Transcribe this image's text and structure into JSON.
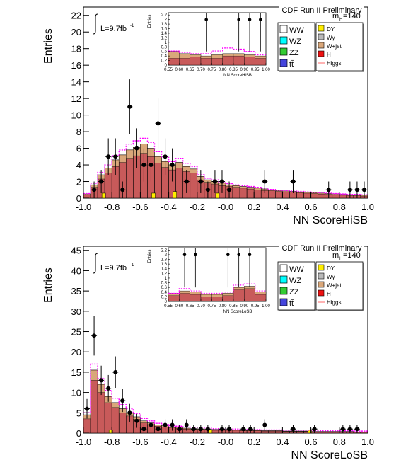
{
  "colors": {
    "bg_red": "#c85a5a",
    "wjet": "#d9a77a",
    "wgamma": "#b9b9b9",
    "dy": "#ffee00",
    "signal": "#ff00ff",
    "data": "#000000",
    "ww": "#ffffff",
    "wz": "#00ffff",
    "zz": "#33cc33",
    "tt": "#4444dd",
    "h": "#ee1111"
  },
  "legend": {
    "left": [
      {
        "label": "WW",
        "color": "#ffffff"
      },
      {
        "label": "WZ",
        "color": "#00ffff"
      },
      {
        "label": "ZZ",
        "color": "#33cc33"
      },
      {
        "label": "tt̄",
        "color": "#4444dd"
      }
    ],
    "right": [
      {
        "label": "DY",
        "color": "#ffee00"
      },
      {
        "label": "Wγ",
        "color": "#b9b9b9"
      },
      {
        "label": "W+jet",
        "color": "#d9a77a"
      },
      {
        "label": "H",
        "color": "#ee1111"
      },
      {
        "label": "Higgs",
        "color": "#ff6666"
      }
    ]
  },
  "chart_data": [
    {
      "type": "bar",
      "title": "CDF Run II Preliminary",
      "ylabel": "Entries",
      "xlabel": "NN ScoreHiSB",
      "lumi": "L=9.7fb",
      "lumi_sup": "-1",
      "mass_label": "m",
      "mass_sub": "H",
      "mass_value": "=140",
      "xlim": [
        -1.0,
        1.0
      ],
      "ylim": [
        0,
        23
      ],
      "x_ticks": [
        "-1.0",
        "-0.8",
        "-0.6",
        "-0.4",
        "-0.2",
        "-0.0",
        "0.2",
        "0.4",
        "0.6",
        "0.8",
        "1.0"
      ],
      "y_ticks": [
        "0",
        "2",
        "4",
        "6",
        "8",
        "10",
        "12",
        "14",
        "16",
        "18",
        "20",
        "22"
      ],
      "bin_width": 0.05,
      "background": [
        0.5,
        1.6,
        2.8,
        3.6,
        4.6,
        5.2,
        5.8,
        6.1,
        6.5,
        6.0,
        5.0,
        4.4,
        4.0,
        4.3,
        3.8,
        3.5,
        2.6,
        2.2,
        2.0,
        1.8,
        1.6,
        1.5,
        1.4,
        1.3,
        1.2,
        1.1,
        1.0,
        0.9,
        0.85,
        0.8,
        0.75,
        0.7,
        0.65,
        0.6,
        0.55,
        0.5,
        0.45,
        0.4,
        0.4,
        0.35
      ],
      "wjet": [
        0.1,
        0.3,
        0.5,
        0.6,
        0.8,
        0.9,
        1.0,
        1.0,
        1.1,
        1.0,
        0.8,
        0.7,
        0.6,
        0.7,
        0.6,
        0.5,
        0.4,
        0.3,
        0.3,
        0.3,
        0.2,
        0.2,
        0.2,
        0.2,
        0.2,
        0.2,
        0.1,
        0.1,
        0.1,
        0.1,
        0.1,
        0.1,
        0.1,
        0.1,
        0.1,
        0.1,
        0.1,
        0.1,
        0.1,
        0.1
      ],
      "signal": [
        0.55,
        1.8,
        3.1,
        4.0,
        5.1,
        5.8,
        6.5,
        6.9,
        7.2,
        6.7,
        5.6,
        4.9,
        4.4,
        4.8,
        4.2,
        3.8,
        2.8,
        2.4,
        2.2,
        1.95,
        1.75,
        1.6,
        1.5,
        1.4,
        1.3,
        1.2,
        1.05,
        0.95,
        0.9,
        0.85,
        0.8,
        0.75,
        0.7,
        0.65,
        0.6,
        0.55,
        0.5,
        0.45,
        0.45,
        0.4
      ],
      "dy": [
        {
          "x": -0.87,
          "y": 0.6
        },
        {
          "x": -0.52,
          "y": 0.6
        },
        {
          "x": -0.37,
          "y": 0.8
        },
        {
          "x": -0.07,
          "y": 0.6
        }
      ],
      "data": [
        {
          "x": -0.925,
          "y": 1,
          "err": 1.0
        },
        {
          "x": -0.875,
          "y": 2,
          "err": 1.4
        },
        {
          "x": -0.825,
          "y": 5,
          "err": 2.2
        },
        {
          "x": -0.775,
          "y": 5,
          "err": 2.2
        },
        {
          "x": -0.725,
          "y": 1,
          "err": 1.0
        },
        {
          "x": -0.675,
          "y": 11,
          "err": 3.3
        },
        {
          "x": -0.625,
          "y": 6,
          "err": 2.4
        },
        {
          "x": -0.575,
          "y": 4,
          "err": 2.0
        },
        {
          "x": -0.525,
          "y": 4,
          "err": 2.0
        },
        {
          "x": -0.475,
          "y": 9,
          "err": 3.0
        },
        {
          "x": -0.425,
          "y": 5,
          "err": 2.2
        },
        {
          "x": -0.375,
          "y": 4,
          "err": 2.0
        },
        {
          "x": -0.275,
          "y": 2,
          "err": 1.4
        },
        {
          "x": -0.175,
          "y": 2,
          "err": 1.4
        },
        {
          "x": -0.125,
          "y": 1,
          "err": 1.0
        },
        {
          "x": -0.075,
          "y": 2,
          "err": 1.4
        },
        {
          "x": -0.025,
          "y": 2,
          "err": 1.4
        },
        {
          "x": 0.025,
          "y": 1,
          "err": 1.0
        },
        {
          "x": 0.275,
          "y": 2,
          "err": 1.4
        },
        {
          "x": 0.475,
          "y": 2,
          "err": 1.4
        },
        {
          "x": 0.725,
          "y": 1,
          "err": 1.0
        },
        {
          "x": 0.875,
          "y": 1,
          "err": 1.0
        },
        {
          "x": 0.925,
          "y": 1,
          "err": 1.0
        },
        {
          "x": 0.975,
          "y": 1,
          "err": 1.0
        }
      ],
      "inset": {
        "ylabel": "Entries",
        "xlabel": "NN ScoreHiSB",
        "xlim": [
          0.55,
          1.0
        ],
        "ylim": [
          0,
          2.3
        ],
        "x_ticks": [
          "0.55",
          "0.60",
          "0.65",
          "0.70",
          "0.75",
          "0.80",
          "0.85",
          "0.90",
          "0.95",
          "1.00"
        ],
        "y_ticks": [
          "0",
          "0.2",
          "0.4",
          "0.6",
          "0.8",
          "1",
          "1.2",
          "1.4",
          "1.6",
          "1.8",
          "2",
          "2.2"
        ],
        "background": [
          0.6,
          0.5,
          0.45,
          0.4,
          0.45,
          0.5,
          0.5,
          0.45,
          0.4
        ],
        "wjet": [
          0.3,
          0.2,
          0.1,
          0.1,
          0.15,
          0.1,
          0.1,
          0.1,
          0.1
        ],
        "signal": [
          0.62,
          0.55,
          0.5,
          0.5,
          0.62,
          0.75,
          0.7,
          0.6,
          0.45
        ],
        "data": [
          {
            "x": 0.725,
            "y": 2,
            "err": 1.4
          },
          {
            "x": 0.875,
            "y": 2,
            "err": 1.4
          },
          {
            "x": 0.925,
            "y": 2,
            "err": 1.4
          },
          {
            "x": 0.975,
            "y": 2,
            "err": 1.4
          }
        ]
      }
    },
    {
      "type": "bar",
      "title": "CDF Run II Preliminary",
      "ylabel": "Entries",
      "xlabel": "NN ScoreLoSB",
      "lumi": "L=9.7fb",
      "lumi_sup": "-1",
      "mass_label": "m",
      "mass_sub": "H",
      "mass_value": "=140",
      "xlim": [
        -1.0,
        1.0
      ],
      "ylim": [
        0,
        46
      ],
      "x_ticks": [
        "-1.0",
        "-0.8",
        "-0.6",
        "-0.4",
        "-0.2",
        "-0.0",
        "0.2",
        "0.4",
        "0.6",
        "0.8",
        "1.0"
      ],
      "y_ticks": [
        "0",
        "5",
        "10",
        "15",
        "20",
        "25",
        "30",
        "35",
        "40",
        "45"
      ],
      "bin_width": 0.05,
      "background": [
        4.5,
        15.5,
        12.0,
        9.0,
        7.5,
        6.0,
        5.0,
        4.0,
        3.0,
        2.5,
        2.0,
        1.8,
        1.5,
        1.4,
        1.2,
        1.1,
        1.0,
        1.0,
        0.9,
        0.9,
        0.8,
        0.8,
        0.7,
        0.7,
        0.7,
        0.6,
        0.6,
        0.6,
        0.5,
        0.5,
        0.5,
        0.5,
        0.4,
        0.4,
        0.4,
        0.4,
        0.4,
        0.4,
        0.3,
        0.3
      ],
      "wjet": [
        1.0,
        2.5,
        2.0,
        1.5,
        1.2,
        1.0,
        0.8,
        0.6,
        0.5,
        0.4,
        0.3,
        0.3,
        0.2,
        0.2,
        0.2,
        0.2,
        0.2,
        0.2,
        0.2,
        0.2,
        0.1,
        0.1,
        0.1,
        0.1,
        0.1,
        0.1,
        0.1,
        0.1,
        0.1,
        0.1,
        0.1,
        0.1,
        0.1,
        0.1,
        0.1,
        0.1,
        0.1,
        0.1,
        0.1,
        0.1
      ],
      "signal": [
        5.0,
        17.0,
        13.5,
        10.5,
        8.6,
        7.0,
        6.0,
        4.8,
        3.6,
        3.0,
        2.4,
        2.1,
        1.8,
        1.7,
        1.5,
        1.4,
        1.3,
        1.2,
        1.1,
        1.1,
        1.0,
        1.0,
        0.9,
        0.9,
        0.9,
        0.8,
        0.8,
        0.8,
        0.7,
        0.7,
        0.7,
        0.7,
        0.6,
        0.6,
        0.6,
        0.6,
        0.6,
        0.6,
        0.5,
        0.5
      ],
      "dy": [
        {
          "x": -0.82,
          "y": 0.8
        },
        {
          "x": -0.12,
          "y": 0.8
        },
        {
          "x": 0.58,
          "y": 0.8
        }
      ],
      "data": [
        {
          "x": -0.975,
          "y": 6,
          "err": 2.4
        },
        {
          "x": -0.925,
          "y": 24,
          "err": 4.9
        },
        {
          "x": -0.875,
          "y": 13,
          "err": 3.6
        },
        {
          "x": -0.825,
          "y": 11,
          "err": 3.3
        },
        {
          "x": -0.775,
          "y": 15,
          "err": 3.9
        },
        {
          "x": -0.725,
          "y": 8,
          "err": 2.8
        },
        {
          "x": -0.675,
          "y": 5,
          "err": 2.2
        },
        {
          "x": -0.625,
          "y": 3,
          "err": 1.7
        },
        {
          "x": -0.575,
          "y": 1,
          "err": 1.0
        },
        {
          "x": -0.525,
          "y": 2,
          "err": 1.4
        },
        {
          "x": -0.475,
          "y": 1,
          "err": 1.0
        },
        {
          "x": -0.425,
          "y": 2,
          "err": 1.4
        },
        {
          "x": -0.375,
          "y": 2,
          "err": 1.4
        },
        {
          "x": -0.325,
          "y": 1,
          "err": 1.0
        },
        {
          "x": -0.275,
          "y": 2,
          "err": 1.4
        },
        {
          "x": -0.225,
          "y": 1,
          "err": 1.0
        },
        {
          "x": -0.175,
          "y": 1,
          "err": 1.0
        },
        {
          "x": -0.125,
          "y": 1,
          "err": 1.0
        },
        {
          "x": -0.025,
          "y": 1,
          "err": 1.0
        },
        {
          "x": 0.025,
          "y": 1,
          "err": 1.0
        },
        {
          "x": 0.125,
          "y": 1,
          "err": 1.0
        },
        {
          "x": 0.175,
          "y": 1,
          "err": 1.0
        },
        {
          "x": 0.275,
          "y": 2,
          "err": 1.4
        },
        {
          "x": 0.475,
          "y": 1,
          "err": 1.0
        },
        {
          "x": 0.625,
          "y": 1,
          "err": 1.0
        },
        {
          "x": 0.825,
          "y": 1,
          "err": 1.0
        },
        {
          "x": 0.875,
          "y": 1,
          "err": 1.0
        },
        {
          "x": 0.925,
          "y": 1,
          "err": 1.0
        }
      ],
      "inset": {
        "ylabel": "Entries",
        "xlabel": "NN ScoreLoSB",
        "xlim": [
          0.55,
          1.0
        ],
        "ylim": [
          0,
          2.3
        ],
        "x_ticks": [
          "0.55",
          "0.60",
          "0.65",
          "0.70",
          "0.75",
          "0.80",
          "0.85",
          "0.90",
          "0.95",
          "1.00"
        ],
        "y_ticks": [
          "0",
          "0.2",
          "0.4",
          "0.6",
          "0.8",
          "1",
          "1.2",
          "1.4",
          "1.6",
          "1.8",
          "2",
          "2.2"
        ],
        "background": [
          0.35,
          0.45,
          0.4,
          0.3,
          0.3,
          0.35,
          0.6,
          0.65,
          0.4
        ],
        "wjet": [
          0.1,
          0.1,
          0.1,
          0.1,
          0.1,
          0.1,
          0.1,
          0.1,
          0.1
        ],
        "signal": [
          0.35,
          0.55,
          0.45,
          0.35,
          0.35,
          0.4,
          0.7,
          0.75,
          0.45
        ],
        "data": [
          {
            "x": 0.625,
            "y": 2,
            "err": 1.4
          },
          {
            "x": 0.675,
            "y": 2,
            "err": 1.4
          },
          {
            "x": 0.825,
            "y": 2,
            "err": 1.4
          },
          {
            "x": 0.875,
            "y": 2,
            "err": 1.4
          },
          {
            "x": 0.925,
            "y": 2,
            "err": 1.4
          }
        ]
      }
    }
  ]
}
